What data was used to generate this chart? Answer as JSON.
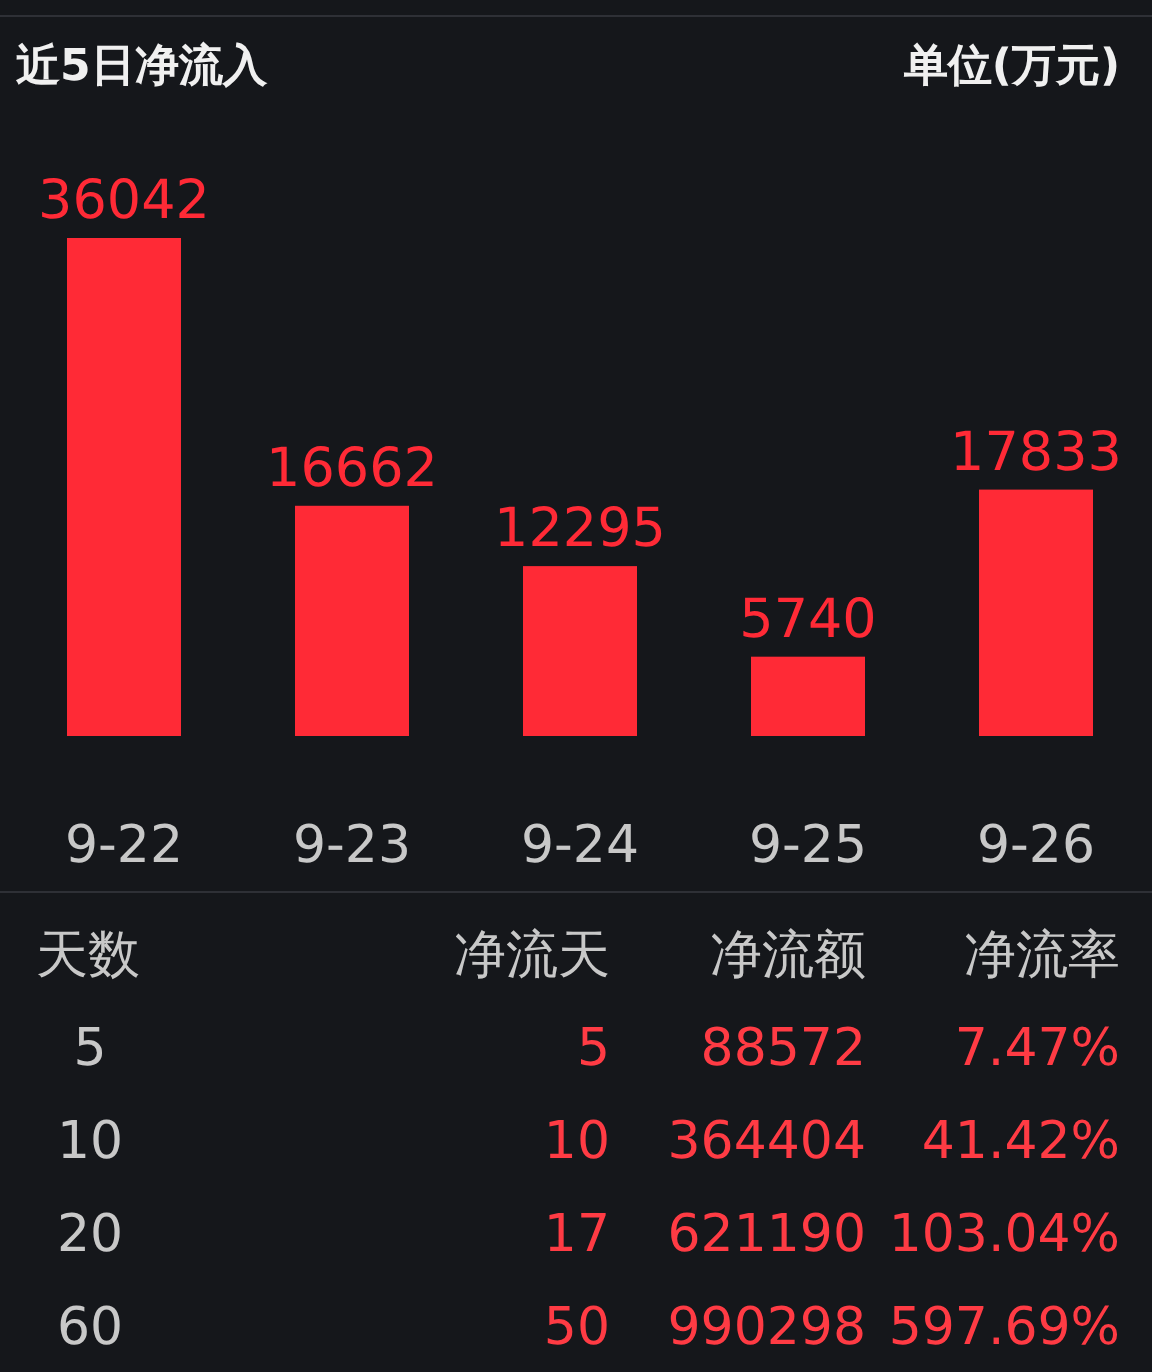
{
  "chart_data": [
    {
      "type": "bar",
      "title": "近5日净流入",
      "subtitle": "单位(万元)",
      "categories": [
        "9-22",
        "9-23",
        "9-24",
        "9-25",
        "9-26"
      ],
      "values": [
        36042,
        16662,
        12295,
        5740,
        17833
      ],
      "color": "#ff2a36",
      "data_labels": true
    },
    {
      "type": "other",
      "annotations": [
        "天数",
        "净流天",
        "净流额",
        "净流率",
        "5",
        "5",
        "88572",
        "7.47%",
        "10",
        "10",
        "364404",
        "41.42%",
        "20",
        "17",
        "621190",
        "103.04%",
        "60",
        "50",
        "990298",
        "597.69%"
      ]
    }
  ]
}
